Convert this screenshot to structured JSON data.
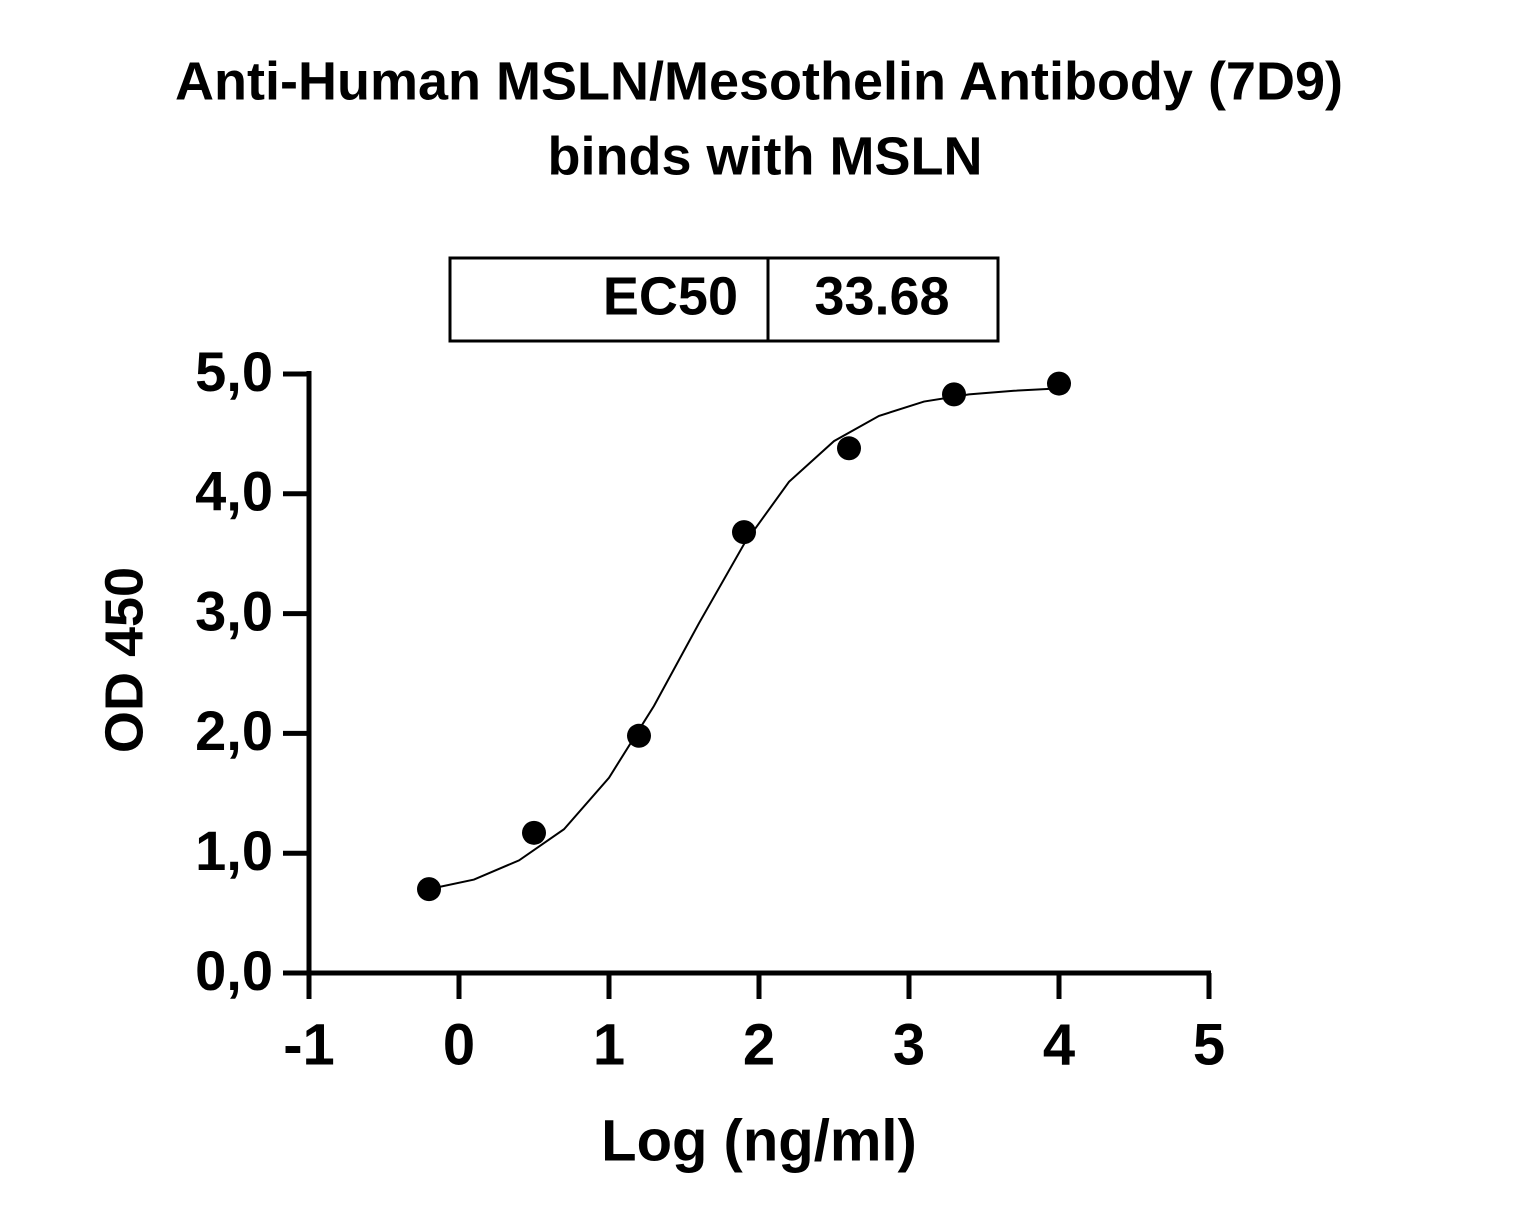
{
  "chart_data": {
    "type": "scatter",
    "title": [
      "Anti-Human MSLN/Mesothelin Antibody (7D9)",
      "binds with MSLN"
    ],
    "annotation": {
      "label": "EC50",
      "value": 33.68
    },
    "x_label": "Log (ng/ml)",
    "y_label": "OD 450",
    "xlim": [
      -1,
      5
    ],
    "xticks": [
      -1,
      0,
      1,
      2,
      3,
      4,
      5
    ],
    "ylim": [
      0,
      5
    ],
    "yticks": [
      {
        "value": 0,
        "label": "0,0"
      },
      {
        "value": 1,
        "label": "1,0"
      },
      {
        "value": 2,
        "label": "2,0"
      },
      {
        "value": 3,
        "label": "3,0"
      },
      {
        "value": 4,
        "label": "4,0"
      },
      {
        "value": 5,
        "label": "5,0"
      }
    ],
    "grid": false,
    "color": "#000000",
    "points": {
      "x": [
        -0.2,
        0.5,
        1.2,
        1.9,
        2.6,
        3.3,
        4.0
      ],
      "values": [
        0.7,
        1.17,
        1.98,
        3.68,
        4.38,
        4.83,
        4.92
      ]
    },
    "curve": {
      "x": [
        -0.2,
        0.1,
        0.4,
        0.7,
        1.0,
        1.3,
        1.6,
        1.9,
        2.2,
        2.5,
        2.8,
        3.1,
        3.4,
        3.7,
        4.0
      ],
      "values": [
        0.7,
        0.78,
        0.94,
        1.2,
        1.63,
        2.23,
        2.92,
        3.58,
        4.1,
        4.44,
        4.65,
        4.77,
        4.83,
        4.86,
        4.88
      ]
    }
  }
}
